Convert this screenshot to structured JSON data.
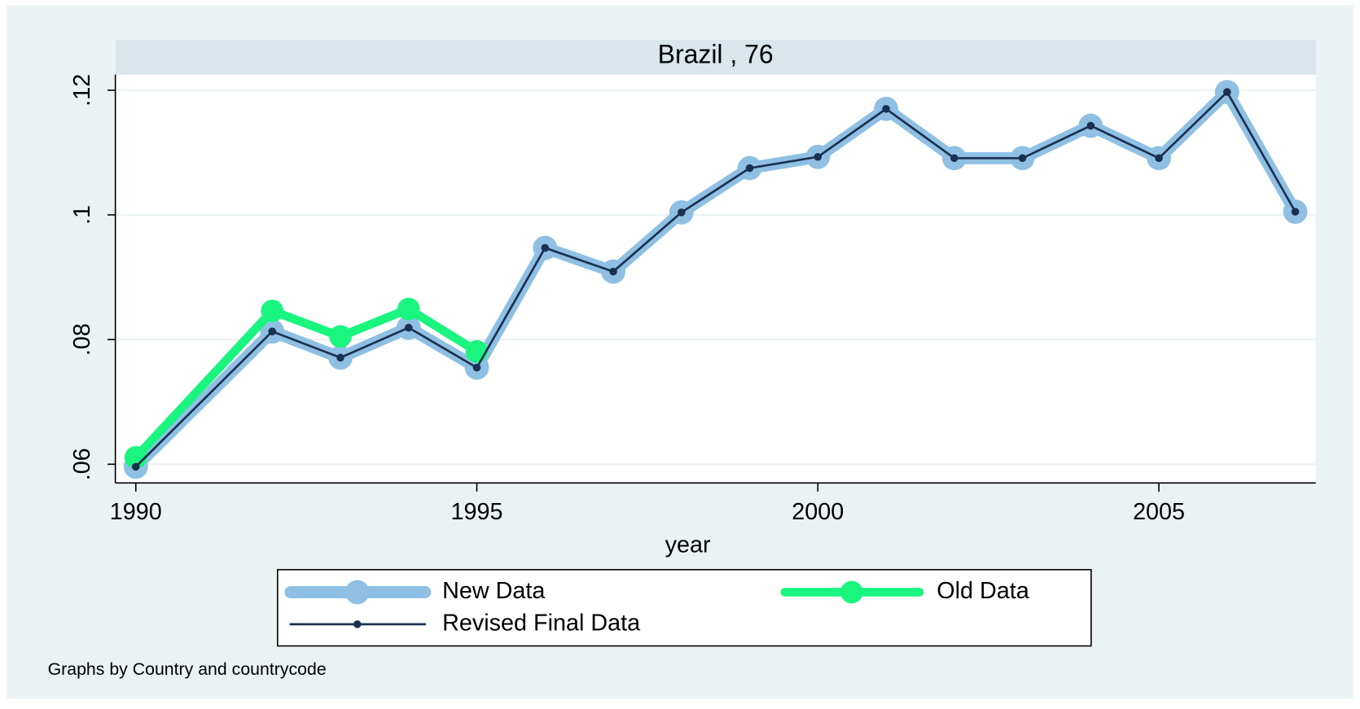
{
  "chart_data": {
    "type": "line",
    "title": "Brazil , 76",
    "x_label": "year",
    "note": "Graphs by Country and countrycode",
    "x": [
      1990,
      1992,
      1993,
      1994,
      1995,
      1996,
      1997,
      1998,
      1999,
      2000,
      2001,
      2002,
      2003,
      2004,
      2005,
      2006,
      2007
    ],
    "series": [
      {
        "name": "New Data",
        "color": "#8fc0e4",
        "values": [
          0.0596,
          0.0813,
          0.0771,
          0.0819,
          0.0755,
          0.0947,
          0.0909,
          0.1004,
          0.1075,
          0.1093,
          0.117,
          0.1091,
          0.1091,
          0.1143,
          0.1091,
          0.1197,
          0.1005
        ]
      },
      {
        "name": "Old Data",
        "color": "#19f57f",
        "values": [
          0.0611,
          0.0846,
          0.0805,
          0.0849,
          0.0781,
          null,
          null,
          null,
          null,
          null,
          null,
          null,
          null,
          null,
          null,
          null,
          null
        ]
      },
      {
        "name": "Revised Final Data",
        "color": "#1a3050",
        "values": [
          0.0596,
          0.0813,
          0.0771,
          0.0819,
          0.0755,
          0.0947,
          0.0909,
          0.1004,
          0.1075,
          0.1093,
          0.117,
          0.1091,
          0.1091,
          0.1143,
          0.1091,
          0.1197,
          0.1005
        ]
      }
    ],
    "xlim": [
      1989.7,
      2007.3
    ],
    "xticks": [
      1990,
      1995,
      2000,
      2005
    ],
    "ylim": [
      0.057,
      0.1225
    ],
    "yticks": [
      {
        "value": 0.06,
        "label": ".06"
      },
      {
        "value": 0.08,
        "label": ".08"
      },
      {
        "value": 0.1,
        "label": ".1"
      },
      {
        "value": 0.12,
        "label": ".12"
      }
    ],
    "grid": true,
    "legend": "bottom"
  }
}
